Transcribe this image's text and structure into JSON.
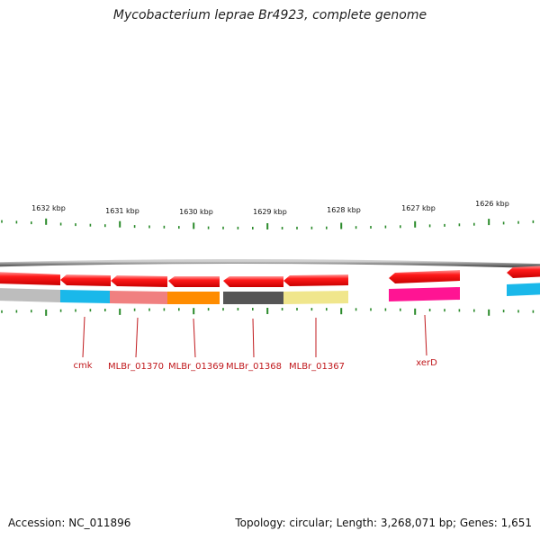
{
  "title": "Mycobacterium leprae Br4923, complete genome",
  "footer": {
    "accession": "Accession: NC_011896",
    "summary": "Topology: circular; Length: 3,268,071 bp; Genes: 1,651"
  },
  "ticks": [
    "1632 kbp",
    "1631 kbp",
    "1630 kbp",
    "1629 kbp",
    "1628 kbp",
    "1627 kbp",
    "1626 kbp"
  ],
  "genes": [
    {
      "name": "",
      "color": "#bdbdbd"
    },
    {
      "name": "cmk",
      "color": "#1ab8ea"
    },
    {
      "name": "MLBr_01370",
      "color": "#f08080"
    },
    {
      "name": "MLBr_01369",
      "color": "#ff8c00"
    },
    {
      "name": "MLBr_01368",
      "color": "#555555"
    },
    {
      "name": "MLBr_01367",
      "color": "#f0e68c"
    },
    {
      "name": "xerD",
      "color": "#ff1493"
    },
    {
      "name": "",
      "color": "#1ab8ea"
    }
  ],
  "colors": {
    "gene_arrow": "#ff1a1a",
    "tick": "#2a8a2a",
    "backbone": "#8c8c8c",
    "label": "#c0181c"
  }
}
